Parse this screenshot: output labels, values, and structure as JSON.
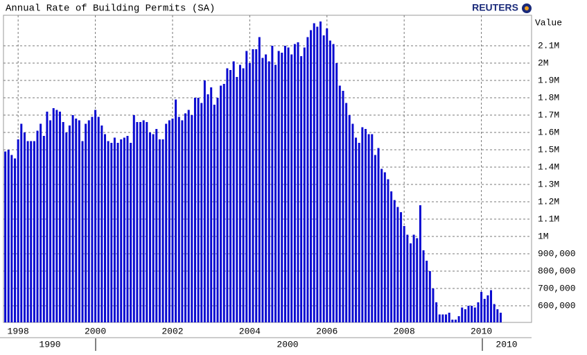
{
  "chart_data": {
    "type": "bar",
    "title": "Annual Rate of Building Permits (SA)",
    "brand": "REUTERS",
    "y_axis_label": "Value",
    "color": "#0a0ad0",
    "grid": true,
    "x_secondary_labels": [
      "1990",
      "2000",
      "2010"
    ],
    "xlim": [
      1997.62,
      2011.3
    ],
    "xticks": [
      1998,
      2000,
      2002,
      2004,
      2006,
      2008,
      2010
    ],
    "ylim": [
      504000,
      2276000
    ],
    "yticks": [
      {
        "value": 600000,
        "label": "600,000"
      },
      {
        "value": 700000,
        "label": "700,000"
      },
      {
        "value": 800000,
        "label": "800,000"
      },
      {
        "value": 900000,
        "label": "900,000"
      },
      {
        "value": 1000000,
        "label": "1M"
      },
      {
        "value": 1100000,
        "label": "1.1M"
      },
      {
        "value": 1200000,
        "label": "1.2M"
      },
      {
        "value": 1300000,
        "label": "1.3M"
      },
      {
        "value": 1400000,
        "label": "1.4M"
      },
      {
        "value": 1500000,
        "label": "1.5M"
      },
      {
        "value": 1600000,
        "label": "1.6M"
      },
      {
        "value": 1700000,
        "label": "1.7M"
      },
      {
        "value": 1800000,
        "label": "1.8M"
      },
      {
        "value": 1900000,
        "label": "1.9M"
      },
      {
        "value": 2000000,
        "label": "2M"
      },
      {
        "value": 2100000,
        "label": "2.1M"
      }
    ],
    "x": [
      1997.667,
      1997.75,
      1997.833,
      1997.917,
      1998.0,
      1998.083,
      1998.167,
      1998.25,
      1998.333,
      1998.417,
      1998.5,
      1998.583,
      1998.667,
      1998.75,
      1998.833,
      1998.917,
      1999.0,
      1999.083,
      1999.167,
      1999.25,
      1999.333,
      1999.417,
      1999.5,
      1999.583,
      1999.667,
      1999.75,
      1999.833,
      1999.917,
      2000.0,
      2000.083,
      2000.167,
      2000.25,
      2000.333,
      2000.417,
      2000.5,
      2000.583,
      2000.667,
      2000.75,
      2000.833,
      2000.917,
      2001.0,
      2001.083,
      2001.167,
      2001.25,
      2001.333,
      2001.417,
      2001.5,
      2001.583,
      2001.667,
      2001.75,
      2001.833,
      2001.917,
      2002.0,
      2002.083,
      2002.167,
      2002.25,
      2002.333,
      2002.417,
      2002.5,
      2002.583,
      2002.667,
      2002.75,
      2002.833,
      2002.917,
      2003.0,
      2003.083,
      2003.167,
      2003.25,
      2003.333,
      2003.417,
      2003.5,
      2003.583,
      2003.667,
      2003.75,
      2003.833,
      2003.917,
      2004.0,
      2004.083,
      2004.167,
      2004.25,
      2004.333,
      2004.417,
      2004.5,
      2004.583,
      2004.667,
      2004.75,
      2004.833,
      2004.917,
      2005.0,
      2005.083,
      2005.167,
      2005.25,
      2005.333,
      2005.417,
      2005.5,
      2005.583,
      2005.667,
      2005.75,
      2005.833,
      2005.917,
      2006.0,
      2006.083,
      2006.167,
      2006.25,
      2006.333,
      2006.417,
      2006.5,
      2006.583,
      2006.667,
      2006.75,
      2006.833,
      2006.917,
      2007.0,
      2007.083,
      2007.167,
      2007.25,
      2007.333,
      2007.417,
      2007.5,
      2007.583,
      2007.667,
      2007.75,
      2007.833,
      2007.917,
      2008.0,
      2008.083,
      2008.167,
      2008.25,
      2008.333,
      2008.417,
      2008.5,
      2008.583,
      2008.667,
      2008.75,
      2008.833,
      2008.917,
      2009.0,
      2009.083,
      2009.167,
      2009.25,
      2009.333,
      2009.417,
      2009.5,
      2009.583,
      2009.667,
      2009.75,
      2009.833,
      2009.917,
      2010.0,
      2010.083,
      2010.167,
      2010.25,
      2010.333,
      2010.417,
      2010.5
    ],
    "values": [
      1490000,
      1500000,
      1470000,
      1450000,
      1560000,
      1650000,
      1600000,
      1550000,
      1550000,
      1550000,
      1610000,
      1650000,
      1580000,
      1720000,
      1670000,
      1740000,
      1730000,
      1720000,
      1660000,
      1600000,
      1640000,
      1700000,
      1680000,
      1670000,
      1550000,
      1650000,
      1670000,
      1690000,
      1730000,
      1690000,
      1640000,
      1590000,
      1550000,
      1540000,
      1570000,
      1540000,
      1560000,
      1570000,
      1580000,
      1540000,
      1700000,
      1660000,
      1660000,
      1670000,
      1660000,
      1600000,
      1590000,
      1620000,
      1560000,
      1560000,
      1650000,
      1670000,
      1680000,
      1790000,
      1690000,
      1670000,
      1710000,
      1730000,
      1700000,
      1800000,
      1800000,
      1770000,
      1900000,
      1820000,
      1860000,
      1760000,
      1800000,
      1870000,
      1880000,
      1970000,
      1960000,
      2010000,
      1920000,
      1990000,
      1970000,
      2070000,
      2000000,
      2080000,
      2080000,
      2150000,
      2030000,
      2050000,
      2010000,
      2100000,
      1990000,
      2070000,
      2060000,
      2100000,
      2090000,
      2050000,
      2110000,
      2120000,
      2040000,
      2090000,
      2150000,
      2190000,
      2230000,
      2210000,
      2240000,
      2160000,
      2200000,
      2130000,
      2110000,
      2000000,
      1870000,
      1840000,
      1770000,
      1700000,
      1650000,
      1570000,
      1540000,
      1630000,
      1620000,
      1590000,
      1590000,
      1470000,
      1510000,
      1390000,
      1370000,
      1330000,
      1260000,
      1210000,
      1170000,
      1140000,
      1060000,
      1010000,
      960000,
      1010000,
      990000,
      1180000,
      920000,
      860000,
      800000,
      700000,
      620000,
      550000,
      550000,
      550000,
      560000,
      520000,
      520000,
      540000,
      590000,
      580000,
      600000,
      600000,
      590000,
      620000,
      680000,
      640000,
      660000,
      690000,
      610000,
      580000,
      560000
    ]
  }
}
